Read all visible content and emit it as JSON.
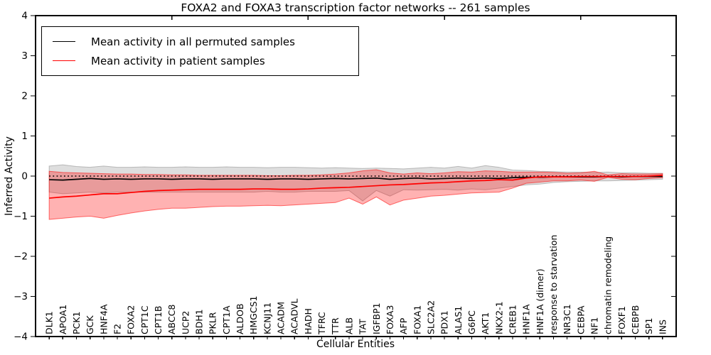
{
  "chart_data": {
    "type": "line",
    "title": "FOXA2 and FOXA3 transcription factor networks -- 261 samples",
    "xlabel": "Cellular Entities",
    "ylabel": "Inferred Activity",
    "ylim": [
      -4,
      4
    ],
    "xlim": [
      0,
      47
    ],
    "grid": false,
    "legend_position": "upper left",
    "ytick_values": [
      4,
      3,
      2,
      1,
      0,
      -1,
      -2,
      -3,
      -4
    ],
    "ytick_labels": [
      "4",
      "3",
      "2",
      "1",
      "0",
      "−1",
      "−2",
      "−3",
      "−4"
    ],
    "top_tick_values": [
      10,
      20,
      30,
      40
    ],
    "zero_line": {
      "value": 0,
      "style": "dotted",
      "color": "#000000"
    },
    "categories": [
      "DLK1",
      "APOA1",
      "PCK1",
      "GCK",
      "HNF4A",
      "F2",
      "FOXA2",
      "CPT1C",
      "CPT1B",
      "ABCC8",
      "UCP2",
      "BDH1",
      "PKLR",
      "CPT1A",
      "ALDOB",
      "HMGCS1",
      "KCNJ11",
      "ACADM",
      "ACADVL",
      "HADH",
      "TFRC",
      "TTR",
      "ALB",
      "TAT",
      "IGFBP1",
      "FOXA3",
      "AFP",
      "FOXA1",
      "SLC2A2",
      "PDX1",
      "ALAS1",
      "G6PC",
      "AKT1",
      "NKX2-1",
      "CREB1",
      "HNF1A",
      "HNF1A (dimer)",
      "response to starvation",
      "NR3C1",
      "CEBPA",
      "NF1",
      "chromatin remodeling",
      "FOXF1",
      "CEBPB",
      "SP1",
      "INS"
    ],
    "series": [
      {
        "name": "Mean activity in all permuted samples",
        "color": "#000000",
        "band_color": "#888888",
        "band_opacity": 0.28,
        "values": [
          -0.09,
          -0.1,
          -0.08,
          -0.06,
          -0.08,
          -0.07,
          -0.08,
          -0.07,
          -0.07,
          -0.08,
          -0.07,
          -0.07,
          -0.08,
          -0.07,
          -0.07,
          -0.07,
          -0.08,
          -0.07,
          -0.07,
          -0.08,
          -0.07,
          -0.06,
          -0.07,
          -0.06,
          -0.05,
          -0.08,
          -0.06,
          -0.05,
          -0.07,
          -0.06,
          -0.05,
          -0.06,
          -0.05,
          -0.06,
          -0.04,
          -0.03,
          -0.03,
          -0.02,
          -0.02,
          -0.02,
          -0.02,
          -0.01,
          -0.02,
          -0.01,
          -0.01,
          -0.01
        ],
        "band_upper": [
          0.25,
          0.28,
          0.24,
          0.22,
          0.25,
          0.22,
          0.22,
          0.23,
          0.22,
          0.22,
          0.23,
          0.22,
          0.22,
          0.23,
          0.22,
          0.22,
          0.21,
          0.22,
          0.22,
          0.21,
          0.2,
          0.21,
          0.2,
          0.19,
          0.2,
          0.19,
          0.18,
          0.2,
          0.22,
          0.2,
          0.24,
          0.2,
          0.26,
          0.22,
          0.15,
          0.14,
          0.12,
          0.11,
          0.1,
          0.1,
          0.09,
          0.1,
          0.08,
          0.08,
          0.07,
          0.07
        ],
        "band_lower": [
          -0.4,
          -0.44,
          -0.42,
          -0.4,
          -0.42,
          -0.4,
          -0.4,
          -0.4,
          -0.4,
          -0.4,
          -0.4,
          -0.4,
          -0.4,
          -0.4,
          -0.4,
          -0.4,
          -0.38,
          -0.4,
          -0.4,
          -0.38,
          -0.38,
          -0.38,
          -0.36,
          -0.62,
          -0.36,
          -0.5,
          -0.34,
          -0.35,
          -0.34,
          -0.33,
          -0.35,
          -0.32,
          -0.34,
          -0.3,
          -0.26,
          -0.22,
          -0.2,
          -0.16,
          -0.14,
          -0.13,
          -0.12,
          -0.12,
          -0.11,
          -0.1,
          -0.09,
          -0.08
        ]
      },
      {
        "name": "Mean activity in patient samples",
        "color": "#ff0000",
        "band_color": "#ff0000",
        "band_opacity": 0.3,
        "values": [
          -0.55,
          -0.52,
          -0.5,
          -0.47,
          -0.44,
          -0.44,
          -0.41,
          -0.38,
          -0.36,
          -0.35,
          -0.34,
          -0.33,
          -0.33,
          -0.33,
          -0.33,
          -0.32,
          -0.32,
          -0.33,
          -0.33,
          -0.32,
          -0.3,
          -0.29,
          -0.28,
          -0.26,
          -0.24,
          -0.22,
          -0.21,
          -0.19,
          -0.17,
          -0.16,
          -0.14,
          -0.12,
          -0.11,
          -0.09,
          -0.1,
          -0.05,
          -0.02,
          -0.02,
          -0.02,
          -0.01,
          -0.01,
          -0.01,
          -0.01,
          -0.01,
          0.0,
          0.02
        ],
        "band_upper": [
          0.12,
          0.09,
          0.08,
          0.07,
          0.06,
          0.05,
          0.05,
          0.04,
          0.04,
          0.03,
          0.03,
          0.02,
          0.02,
          0.02,
          0.02,
          0.02,
          0.01,
          0.01,
          0.02,
          0.02,
          0.03,
          0.05,
          0.08,
          0.13,
          0.16,
          0.08,
          0.05,
          0.08,
          0.06,
          0.08,
          0.11,
          0.1,
          0.13,
          0.12,
          0.1,
          0.1,
          0.1,
          0.09,
          0.07,
          0.08,
          0.12,
          0.03,
          0.06,
          0.05,
          0.05,
          0.06
        ],
        "band_lower": [
          -1.08,
          -1.05,
          -1.02,
          -1.0,
          -1.05,
          -0.98,
          -0.92,
          -0.87,
          -0.83,
          -0.8,
          -0.8,
          -0.78,
          -0.76,
          -0.75,
          -0.75,
          -0.74,
          -0.73,
          -0.74,
          -0.72,
          -0.7,
          -0.68,
          -0.66,
          -0.55,
          -0.7,
          -0.52,
          -0.72,
          -0.6,
          -0.55,
          -0.5,
          -0.48,
          -0.45,
          -0.42,
          -0.41,
          -0.4,
          -0.3,
          -0.18,
          -0.15,
          -0.12,
          -0.12,
          -0.1,
          -0.13,
          -0.03,
          -0.08,
          -0.09,
          -0.06,
          -0.04
        ]
      }
    ]
  }
}
